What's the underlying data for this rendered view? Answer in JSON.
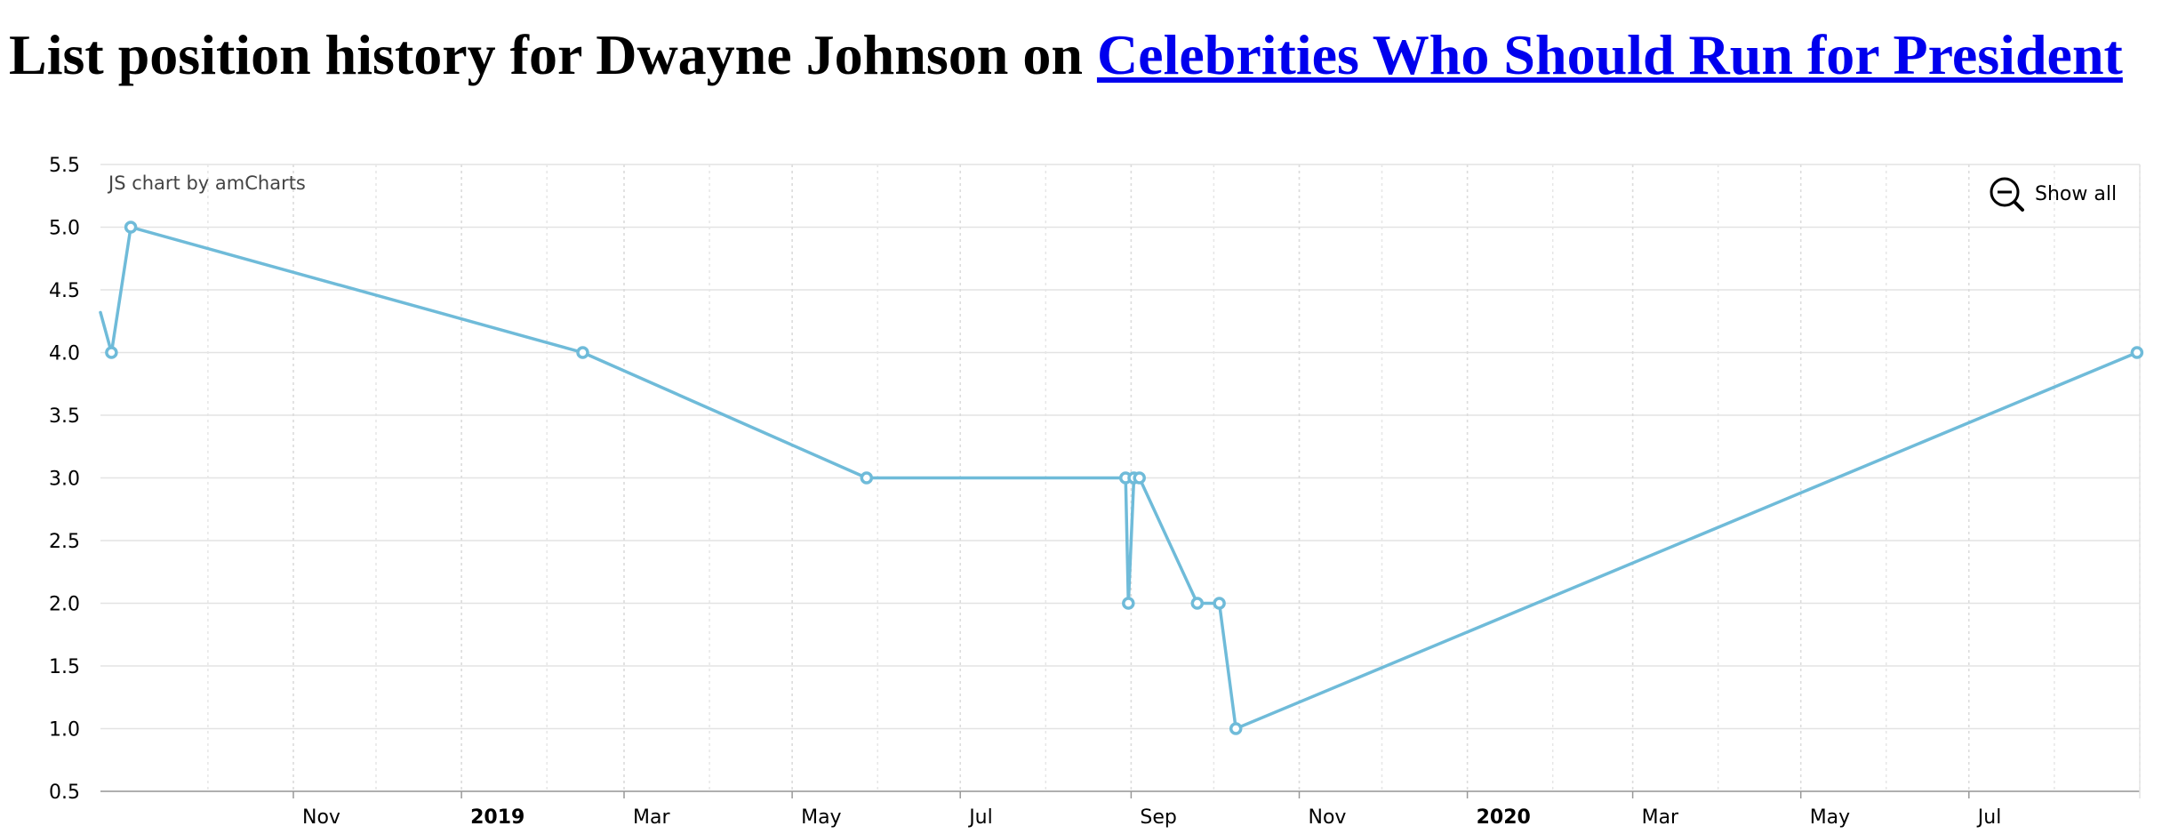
{
  "page": {
    "title_prefix": "List position history for Dwayne Johnson on ",
    "title_link": "Celebrities Who Should Run for President"
  },
  "chart_data": {
    "type": "line",
    "title": "",
    "xlabel": "",
    "ylabel": "",
    "ylim": [
      0.5,
      5.5
    ],
    "yticks": [
      "5.5",
      "5.0",
      "4.5",
      "4.0",
      "3.5",
      "3.0",
      "2.5",
      "2.0",
      "1.5",
      "1.0",
      "0.5"
    ],
    "xlim": [
      "2018-08-23",
      "2020-09-01"
    ],
    "xticks": [
      {
        "date": "2018-11-01",
        "label": "Nov",
        "major": false
      },
      {
        "date": "2019-01-01",
        "label": "2019",
        "major": true
      },
      {
        "date": "2019-03-01",
        "label": "Mar",
        "major": false
      },
      {
        "date": "2019-05-01",
        "label": "May",
        "major": false
      },
      {
        "date": "2019-07-01",
        "label": "Jul",
        "major": false
      },
      {
        "date": "2019-09-01",
        "label": "Sep",
        "major": false
      },
      {
        "date": "2019-11-01",
        "label": "Nov",
        "major": false
      },
      {
        "date": "2020-01-01",
        "label": "2020",
        "major": true
      },
      {
        "date": "2020-03-01",
        "label": "Mar",
        "major": false
      },
      {
        "date": "2020-05-01",
        "label": "May",
        "major": false
      },
      {
        "date": "2020-07-01",
        "label": "Jul",
        "major": false
      }
    ],
    "series": [
      {
        "color": "#6fbbd9",
        "offscreen_start": {
          "x": "2018-08-22",
          "y": 4.4
        },
        "points": [
          {
            "x": "2018-08-27",
            "y": 4
          },
          {
            "x": "2018-09-03",
            "y": 5
          },
          {
            "x": "2019-02-14",
            "y": 4
          },
          {
            "x": "2019-05-28",
            "y": 3
          },
          {
            "x": "2019-08-30",
            "y": 3
          },
          {
            "x": "2019-08-31",
            "y": 2
          },
          {
            "x": "2019-09-02",
            "y": 3
          },
          {
            "x": "2019-09-04",
            "y": 3
          },
          {
            "x": "2019-09-25",
            "y": 2
          },
          {
            "x": "2019-10-03",
            "y": 2
          },
          {
            "x": "2019-10-09",
            "y": 1
          },
          {
            "x": "2020-08-31",
            "y": 4
          }
        ]
      }
    ],
    "grid": true,
    "credit": "JS chart by amCharts",
    "zoom_button": {
      "label": "Show all",
      "icon": "zoom-out-icon"
    }
  }
}
